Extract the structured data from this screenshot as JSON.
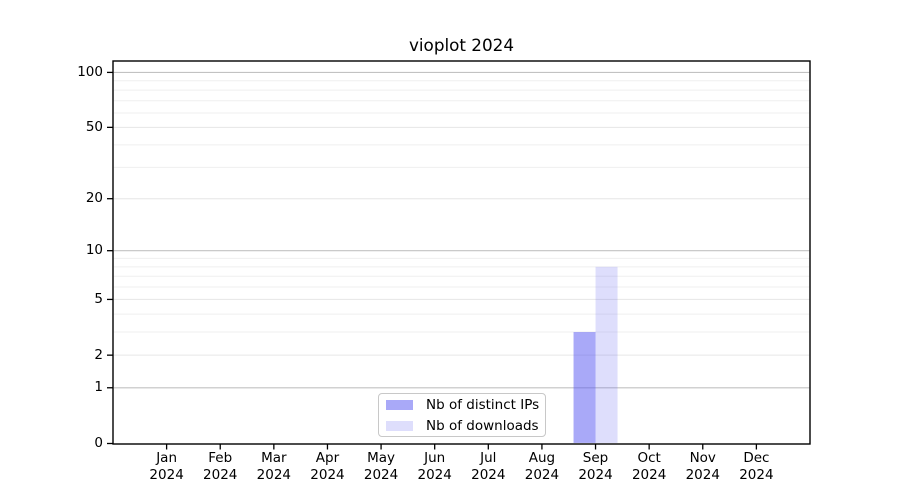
{
  "chart_data": {
    "type": "bar",
    "title": "vioplot 2024",
    "categories": [
      "Jan 2024",
      "Feb 2024",
      "Mar 2024",
      "Apr 2024",
      "May 2024",
      "Jun 2024",
      "Jul 2024",
      "Aug 2024",
      "Sep 2024",
      "Oct 2024",
      "Nov 2024",
      "Dec 2024"
    ],
    "series": [
      {
        "name": "Nb of distinct IPs",
        "color": "rgba(90,90,242,0.52)",
        "values": [
          0,
          0,
          0,
          0,
          0,
          0,
          0,
          0,
          3,
          0,
          0,
          0
        ]
      },
      {
        "name": "Nb of downloads",
        "color": "rgba(90,90,242,0.20)",
        "values": [
          0,
          0,
          0,
          0,
          0,
          0,
          0,
          0,
          8,
          0,
          0,
          0
        ]
      }
    ],
    "yscale": "log1p",
    "ylim": [
      0,
      115.4
    ],
    "yticks": [
      0,
      1,
      2,
      5,
      10,
      20,
      50,
      100
    ],
    "gridlines": {
      "major": [
        1,
        10,
        100
      ],
      "mid": [
        2,
        5,
        20,
        50
      ],
      "minor": [
        3,
        4,
        6,
        7,
        8,
        9,
        30,
        40,
        60,
        70,
        80,
        90
      ]
    },
    "grid": true,
    "legend_position": "lower center inside",
    "colors": {
      "axis": "#000000",
      "text": "#000000",
      "grid_major": "#c2c2c2",
      "grid_mid": "#e6e6e6",
      "grid_minor": "#efefef",
      "legend_border": "#c8c8c8",
      "background": "#ffffff"
    }
  }
}
